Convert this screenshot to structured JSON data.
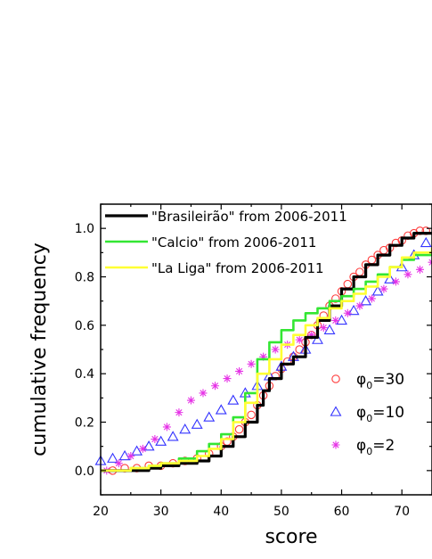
{
  "chart_data": {
    "type": "line",
    "xlabel": "score",
    "ylabel": "cumulative frequency",
    "xlim": [
      20,
      75
    ],
    "ylim": [
      -0.1,
      1.1
    ],
    "x_ticks": [
      20,
      30,
      40,
      50,
      60,
      70
    ],
    "y_ticks": [
      0.0,
      0.2,
      0.4,
      0.6,
      0.8,
      1.0
    ],
    "x_tick_labels": [
      "20",
      "30",
      "40",
      "50",
      "60",
      "70"
    ],
    "y_tick_labels": [
      "0.0",
      "0.2",
      "0.4",
      "0.6",
      "0.8",
      "1.0"
    ],
    "grid": false,
    "legend_lines_position": "top-left",
    "legend_markers_position": "bottom-right",
    "series": [
      {
        "name": "\"Brasileirão\" from 2006-2011",
        "kind": "line",
        "color": "#000000",
        "x": [
          20,
          25,
          28,
          30,
          33,
          36,
          38,
          40,
          42,
          44,
          46,
          47,
          48,
          50,
          52,
          54,
          56,
          58,
          60,
          62,
          64,
          66,
          68,
          70,
          72,
          75
        ],
        "y": [
          0.0,
          0.0,
          0.01,
          0.02,
          0.03,
          0.04,
          0.06,
          0.1,
          0.14,
          0.2,
          0.27,
          0.33,
          0.38,
          0.44,
          0.47,
          0.55,
          0.62,
          0.68,
          0.75,
          0.8,
          0.85,
          0.89,
          0.93,
          0.96,
          0.98,
          0.98
        ]
      },
      {
        "name": "\"Calcio\" from 2006-2011",
        "kind": "line",
        "color": "#33e633",
        "x": [
          20,
          25,
          28,
          30,
          33,
          36,
          38,
          40,
          42,
          44,
          46,
          48,
          50,
          52,
          54,
          56,
          58,
          60,
          62,
          64,
          66,
          68,
          70,
          72,
          75
        ],
        "y": [
          0.0,
          0.01,
          0.02,
          0.03,
          0.05,
          0.08,
          0.11,
          0.15,
          0.22,
          0.32,
          0.46,
          0.53,
          0.58,
          0.62,
          0.65,
          0.67,
          0.7,
          0.72,
          0.75,
          0.78,
          0.81,
          0.84,
          0.87,
          0.89,
          0.91
        ]
      },
      {
        "name": "\"La Liga\" from 2006-2011",
        "kind": "line",
        "color": "#ffff33",
        "x": [
          20,
          25,
          28,
          30,
          33,
          36,
          38,
          40,
          42,
          44,
          46,
          48,
          50,
          52,
          54,
          56,
          58,
          60,
          62,
          64,
          66,
          68,
          70,
          72,
          75
        ],
        "y": [
          0.0,
          0.01,
          0.02,
          0.03,
          0.04,
          0.06,
          0.09,
          0.13,
          0.2,
          0.28,
          0.4,
          0.46,
          0.52,
          0.56,
          0.6,
          0.63,
          0.67,
          0.7,
          0.73,
          0.76,
          0.8,
          0.84,
          0.88,
          0.9,
          0.92
        ]
      },
      {
        "name": "φ0=30",
        "kind": "marker",
        "marker": "circle",
        "color": "#ff3b3b",
        "x": [
          22,
          24,
          26,
          28,
          30,
          32,
          34,
          36,
          38,
          40,
          41,
          42,
          43,
          44,
          45,
          46,
          47,
          48,
          49,
          50,
          51,
          52,
          53,
          54,
          55,
          56,
          57,
          58,
          59,
          60,
          61,
          62,
          63,
          64,
          65,
          66,
          67,
          68,
          69,
          70,
          71,
          72,
          73,
          74
        ],
        "y": [
          0.0,
          0.01,
          0.01,
          0.02,
          0.02,
          0.03,
          0.04,
          0.05,
          0.07,
          0.1,
          0.12,
          0.14,
          0.17,
          0.2,
          0.23,
          0.27,
          0.31,
          0.35,
          0.39,
          0.42,
          0.45,
          0.47,
          0.5,
          0.53,
          0.56,
          0.6,
          0.64,
          0.68,
          0.71,
          0.74,
          0.77,
          0.8,
          0.82,
          0.85,
          0.87,
          0.89,
          0.91,
          0.92,
          0.94,
          0.95,
          0.97,
          0.98,
          0.99,
          0.99
        ]
      },
      {
        "name": "φ0=10",
        "kind": "marker",
        "marker": "triangle",
        "color": "#3333ff",
        "x": [
          20,
          22,
          24,
          26,
          28,
          30,
          32,
          34,
          36,
          38,
          40,
          42,
          44,
          46,
          48,
          50,
          52,
          54,
          56,
          58,
          60,
          62,
          64,
          66,
          68,
          70,
          72,
          74
        ],
        "y": [
          0.04,
          0.05,
          0.06,
          0.08,
          0.1,
          0.12,
          0.14,
          0.17,
          0.19,
          0.22,
          0.25,
          0.29,
          0.32,
          0.35,
          0.39,
          0.43,
          0.47,
          0.5,
          0.54,
          0.58,
          0.62,
          0.66,
          0.7,
          0.74,
          0.79,
          0.84,
          0.89,
          0.94
        ]
      },
      {
        "name": "φ0=2",
        "kind": "marker",
        "marker": "star",
        "color": "#e633e6",
        "x": [
          21,
          23,
          25,
          27,
          29,
          31,
          33,
          35,
          37,
          39,
          41,
          43,
          45,
          47,
          49,
          51,
          53,
          55,
          57,
          59,
          61,
          63,
          65,
          67,
          69,
          71,
          73,
          75
        ],
        "y": [
          0.0,
          0.03,
          0.06,
          0.09,
          0.13,
          0.18,
          0.24,
          0.29,
          0.32,
          0.35,
          0.38,
          0.41,
          0.44,
          0.47,
          0.5,
          0.52,
          0.54,
          0.56,
          0.59,
          0.62,
          0.65,
          0.68,
          0.71,
          0.75,
          0.78,
          0.81,
          0.83,
          0.86
        ]
      }
    ],
    "legend_markers": [
      {
        "label": "φ",
        "subscript": "0",
        "suffix": "=30",
        "marker": "circle",
        "color": "#ff3b3b"
      },
      {
        "label": "φ",
        "subscript": "0",
        "suffix": "=10",
        "marker": "triangle",
        "color": "#3333ff"
      },
      {
        "label": "φ",
        "subscript": "0",
        "suffix": "=2",
        "marker": "star",
        "color": "#e633e6"
      }
    ]
  }
}
